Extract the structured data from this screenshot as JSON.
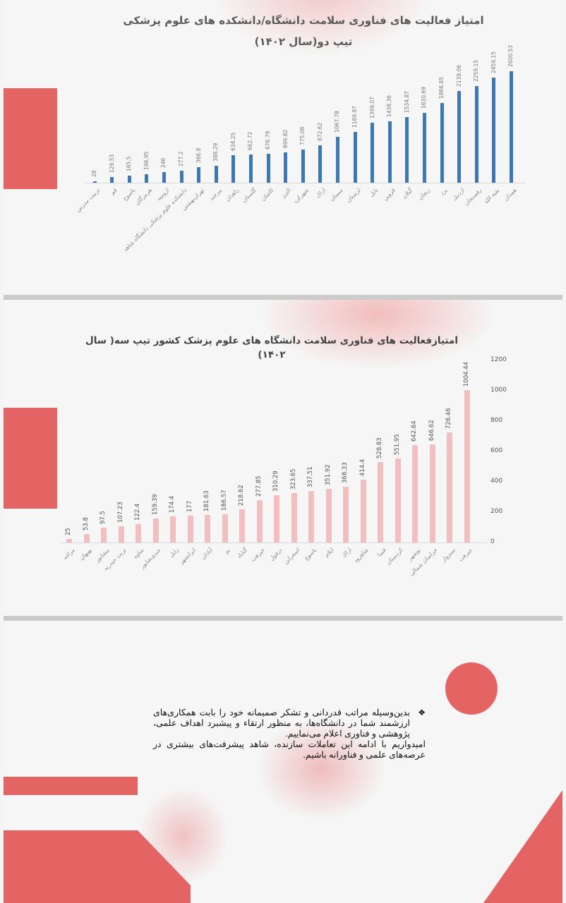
{
  "colors": {
    "accent_red": "#e46464",
    "bar_blue": "#3c78b4",
    "bar_pink": "#f2bfc0",
    "divider_gray": "#cbcbcb",
    "background": "#f6f6f6"
  },
  "slide1": {
    "title_line1": "امتیاز فعالیت های فناوری سلامت دانشگاه/دانشکده های علوم پزشکی",
    "title_line2": "تیپ دو(سال ۱۴۰۲)"
  },
  "slide2": {
    "title": "امتیازفعالیت های فناوری سلامت دانشگاه های علوم پزشک کشور تیپ سه( سال ۱۴۰۲)"
  },
  "slide3": {
    "bullet_icon": "diamond-bullet-icon",
    "bullet_text": "بدین‌وسیله مراتب قدردانی و تشکر صمیمانه خود را بابت همکاری‌های ارزشمند شما در دانشگاه‌ها، به منظور ارتقاء و پیشبرد اهداف علمی، پژوهشی و فناوری اعلام می‌نماییم.",
    "closing_text": "امیدواریم با ادامه این تعاملات سازنده، شاهد پیشرفت‌های بیشتری در عرصه‌های علمی و فناورانه باشیم."
  },
  "chart_data": [
    {
      "type": "bar",
      "title": "امتیاز فعالیت های فناوری سلامت دانشگاه/دانشکده های علوم پزشکی تیپ دو(سال ۱۴۰۲)",
      "xlabel": "",
      "ylabel": "",
      "grid": false,
      "legend": "none",
      "color": "#3c78b4",
      "categories": [
        "تربیت مدرس",
        "قم",
        "یاسوج",
        "هرمزگان",
        "ارومیه",
        "دانشکده علوم پزشکی دانشگاه شاهد",
        "تهران‌بهشتی",
        "بیرجند",
        "زاهدان",
        "گلستان",
        "کاشان",
        "البرز",
        "شهرکرد",
        "اراک",
        "سمنان",
        "لرستان",
        "بابل",
        "قزوین",
        "گیلان",
        "زنجان",
        "یزد",
        "اردبیل",
        "رفسنجان",
        "بقیة الله",
        "همدان"
      ],
      "values": [
        28,
        129.53,
        165.5,
        198.95,
        246,
        277.2,
        366.8,
        388.29,
        634.25,
        662.72,
        676.79,
        699.82,
        775.08,
        872.62,
        1067.78,
        1189.97,
        1399.07,
        1438.36,
        1534.87,
        1630.69,
        1866.85,
        2139.06,
        2259.15,
        2459.15,
        2600.53
      ],
      "ylim": [
        0,
        2800
      ]
    },
    {
      "type": "bar",
      "title": "امتیازفعالیت های فناوری سلامت دانشگاه های علوم پزشک کشور تیپ سه( سال ۱۴۰۲)",
      "xlabel": "",
      "ylabel": "",
      "grid": false,
      "legend": "none",
      "color": "#f2bfc0",
      "y_axis_position": "right",
      "y_ticks": [
        0,
        200,
        400,
        600,
        800,
        1000,
        1200
      ],
      "categories": [
        "مراغه",
        "بهبهان",
        "نیشابور",
        "تربت حیدریه",
        "ساوه",
        "جندی‌شاپور",
        "زابل",
        "ایرانشهر",
        "آبادان",
        "بم",
        "گناباد",
        "جیرفت",
        "دزفول",
        "اسفراین",
        "یاسوج",
        "ایلام",
        "اراک",
        "شاهرود",
        "فسا",
        "کردستان",
        "بوشهر",
        "خراسان شمالی",
        "سبزوار",
        "جیرفت"
      ],
      "values": [
        25,
        53.8,
        97.5,
        107.23,
        122.4,
        159.39,
        174.4,
        177,
        181.63,
        186.57,
        218.62,
        277.85,
        310.29,
        323.65,
        337.51,
        351.92,
        368.33,
        414.4,
        528.83,
        551.95,
        642.64,
        646.62,
        726.46,
        1004.44
      ],
      "ylim": [
        0,
        1200
      ]
    }
  ],
  "chart1_labels": [
    "28",
    "129.53",
    "165.5",
    "198.95",
    "246",
    "277.2",
    "366.8",
    "388.29",
    "634.25",
    "662.72",
    "676.79",
    "699.82",
    "775.08",
    "872.62",
    "1067.78",
    "1189.97",
    "1399.07",
    "1438.36",
    "1534.87",
    "1630.69",
    "1866.85",
    "2139.06",
    "2259.15",
    "2459.15",
    "2600.53"
  ],
  "chart2_ticks": [
    "0",
    "200",
    "400",
    "600",
    "800",
    "1000",
    "1200"
  ]
}
